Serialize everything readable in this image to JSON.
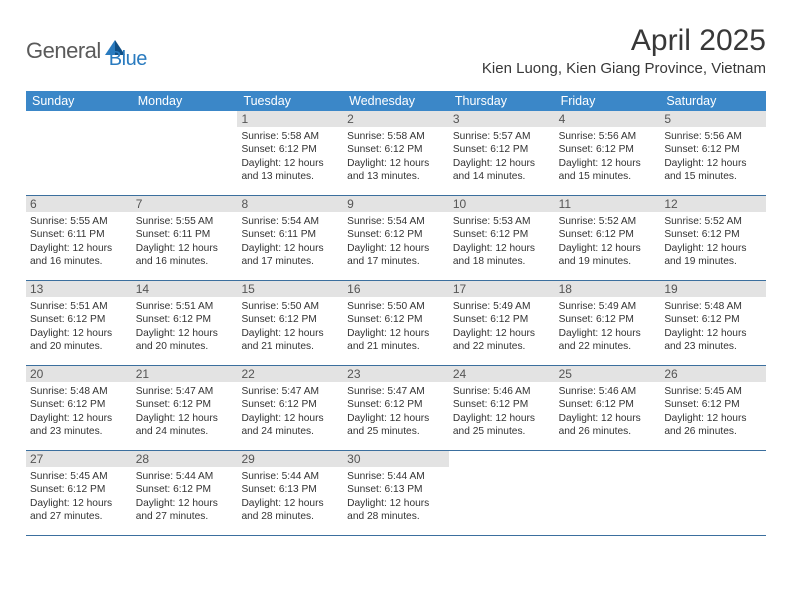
{
  "brand": {
    "name1": "General",
    "name2": "Blue",
    "text_color": "#5a5a5a",
    "accent_color": "#2a7bbf"
  },
  "header": {
    "month_title": "April 2025",
    "location": "Kien Luong, Kien Giang Province, Vietnam"
  },
  "colors": {
    "header_bg": "#3b87c8",
    "header_text": "#ffffff",
    "daynum_bg": "#e3e3e3",
    "daynum_text": "#555555",
    "rule": "#3b6f9e",
    "body_text": "#333333"
  },
  "day_names": [
    "Sunday",
    "Monday",
    "Tuesday",
    "Wednesday",
    "Thursday",
    "Friday",
    "Saturday"
  ],
  "weeks": [
    [
      {
        "num": "",
        "sunrise": "",
        "sunset": "",
        "daylight": ""
      },
      {
        "num": "",
        "sunrise": "",
        "sunset": "",
        "daylight": ""
      },
      {
        "num": "1",
        "sunrise": "Sunrise: 5:58 AM",
        "sunset": "Sunset: 6:12 PM",
        "daylight": "Daylight: 12 hours and 13 minutes."
      },
      {
        "num": "2",
        "sunrise": "Sunrise: 5:58 AM",
        "sunset": "Sunset: 6:12 PM",
        "daylight": "Daylight: 12 hours and 13 minutes."
      },
      {
        "num": "3",
        "sunrise": "Sunrise: 5:57 AM",
        "sunset": "Sunset: 6:12 PM",
        "daylight": "Daylight: 12 hours and 14 minutes."
      },
      {
        "num": "4",
        "sunrise": "Sunrise: 5:56 AM",
        "sunset": "Sunset: 6:12 PM",
        "daylight": "Daylight: 12 hours and 15 minutes."
      },
      {
        "num": "5",
        "sunrise": "Sunrise: 5:56 AM",
        "sunset": "Sunset: 6:12 PM",
        "daylight": "Daylight: 12 hours and 15 minutes."
      }
    ],
    [
      {
        "num": "6",
        "sunrise": "Sunrise: 5:55 AM",
        "sunset": "Sunset: 6:11 PM",
        "daylight": "Daylight: 12 hours and 16 minutes."
      },
      {
        "num": "7",
        "sunrise": "Sunrise: 5:55 AM",
        "sunset": "Sunset: 6:11 PM",
        "daylight": "Daylight: 12 hours and 16 minutes."
      },
      {
        "num": "8",
        "sunrise": "Sunrise: 5:54 AM",
        "sunset": "Sunset: 6:11 PM",
        "daylight": "Daylight: 12 hours and 17 minutes."
      },
      {
        "num": "9",
        "sunrise": "Sunrise: 5:54 AM",
        "sunset": "Sunset: 6:12 PM",
        "daylight": "Daylight: 12 hours and 17 minutes."
      },
      {
        "num": "10",
        "sunrise": "Sunrise: 5:53 AM",
        "sunset": "Sunset: 6:12 PM",
        "daylight": "Daylight: 12 hours and 18 minutes."
      },
      {
        "num": "11",
        "sunrise": "Sunrise: 5:52 AM",
        "sunset": "Sunset: 6:12 PM",
        "daylight": "Daylight: 12 hours and 19 minutes."
      },
      {
        "num": "12",
        "sunrise": "Sunrise: 5:52 AM",
        "sunset": "Sunset: 6:12 PM",
        "daylight": "Daylight: 12 hours and 19 minutes."
      }
    ],
    [
      {
        "num": "13",
        "sunrise": "Sunrise: 5:51 AM",
        "sunset": "Sunset: 6:12 PM",
        "daylight": "Daylight: 12 hours and 20 minutes."
      },
      {
        "num": "14",
        "sunrise": "Sunrise: 5:51 AM",
        "sunset": "Sunset: 6:12 PM",
        "daylight": "Daylight: 12 hours and 20 minutes."
      },
      {
        "num": "15",
        "sunrise": "Sunrise: 5:50 AM",
        "sunset": "Sunset: 6:12 PM",
        "daylight": "Daylight: 12 hours and 21 minutes."
      },
      {
        "num": "16",
        "sunrise": "Sunrise: 5:50 AM",
        "sunset": "Sunset: 6:12 PM",
        "daylight": "Daylight: 12 hours and 21 minutes."
      },
      {
        "num": "17",
        "sunrise": "Sunrise: 5:49 AM",
        "sunset": "Sunset: 6:12 PM",
        "daylight": "Daylight: 12 hours and 22 minutes."
      },
      {
        "num": "18",
        "sunrise": "Sunrise: 5:49 AM",
        "sunset": "Sunset: 6:12 PM",
        "daylight": "Daylight: 12 hours and 22 minutes."
      },
      {
        "num": "19",
        "sunrise": "Sunrise: 5:48 AM",
        "sunset": "Sunset: 6:12 PM",
        "daylight": "Daylight: 12 hours and 23 minutes."
      }
    ],
    [
      {
        "num": "20",
        "sunrise": "Sunrise: 5:48 AM",
        "sunset": "Sunset: 6:12 PM",
        "daylight": "Daylight: 12 hours and 23 minutes."
      },
      {
        "num": "21",
        "sunrise": "Sunrise: 5:47 AM",
        "sunset": "Sunset: 6:12 PM",
        "daylight": "Daylight: 12 hours and 24 minutes."
      },
      {
        "num": "22",
        "sunrise": "Sunrise: 5:47 AM",
        "sunset": "Sunset: 6:12 PM",
        "daylight": "Daylight: 12 hours and 24 minutes."
      },
      {
        "num": "23",
        "sunrise": "Sunrise: 5:47 AM",
        "sunset": "Sunset: 6:12 PM",
        "daylight": "Daylight: 12 hours and 25 minutes."
      },
      {
        "num": "24",
        "sunrise": "Sunrise: 5:46 AM",
        "sunset": "Sunset: 6:12 PM",
        "daylight": "Daylight: 12 hours and 25 minutes."
      },
      {
        "num": "25",
        "sunrise": "Sunrise: 5:46 AM",
        "sunset": "Sunset: 6:12 PM",
        "daylight": "Daylight: 12 hours and 26 minutes."
      },
      {
        "num": "26",
        "sunrise": "Sunrise: 5:45 AM",
        "sunset": "Sunset: 6:12 PM",
        "daylight": "Daylight: 12 hours and 26 minutes."
      }
    ],
    [
      {
        "num": "27",
        "sunrise": "Sunrise: 5:45 AM",
        "sunset": "Sunset: 6:12 PM",
        "daylight": "Daylight: 12 hours and 27 minutes."
      },
      {
        "num": "28",
        "sunrise": "Sunrise: 5:44 AM",
        "sunset": "Sunset: 6:12 PM",
        "daylight": "Daylight: 12 hours and 27 minutes."
      },
      {
        "num": "29",
        "sunrise": "Sunrise: 5:44 AM",
        "sunset": "Sunset: 6:13 PM",
        "daylight": "Daylight: 12 hours and 28 minutes."
      },
      {
        "num": "30",
        "sunrise": "Sunrise: 5:44 AM",
        "sunset": "Sunset: 6:13 PM",
        "daylight": "Daylight: 12 hours and 28 minutes."
      },
      {
        "num": "",
        "sunrise": "",
        "sunset": "",
        "daylight": ""
      },
      {
        "num": "",
        "sunrise": "",
        "sunset": "",
        "daylight": ""
      },
      {
        "num": "",
        "sunrise": "",
        "sunset": "",
        "daylight": ""
      }
    ]
  ]
}
